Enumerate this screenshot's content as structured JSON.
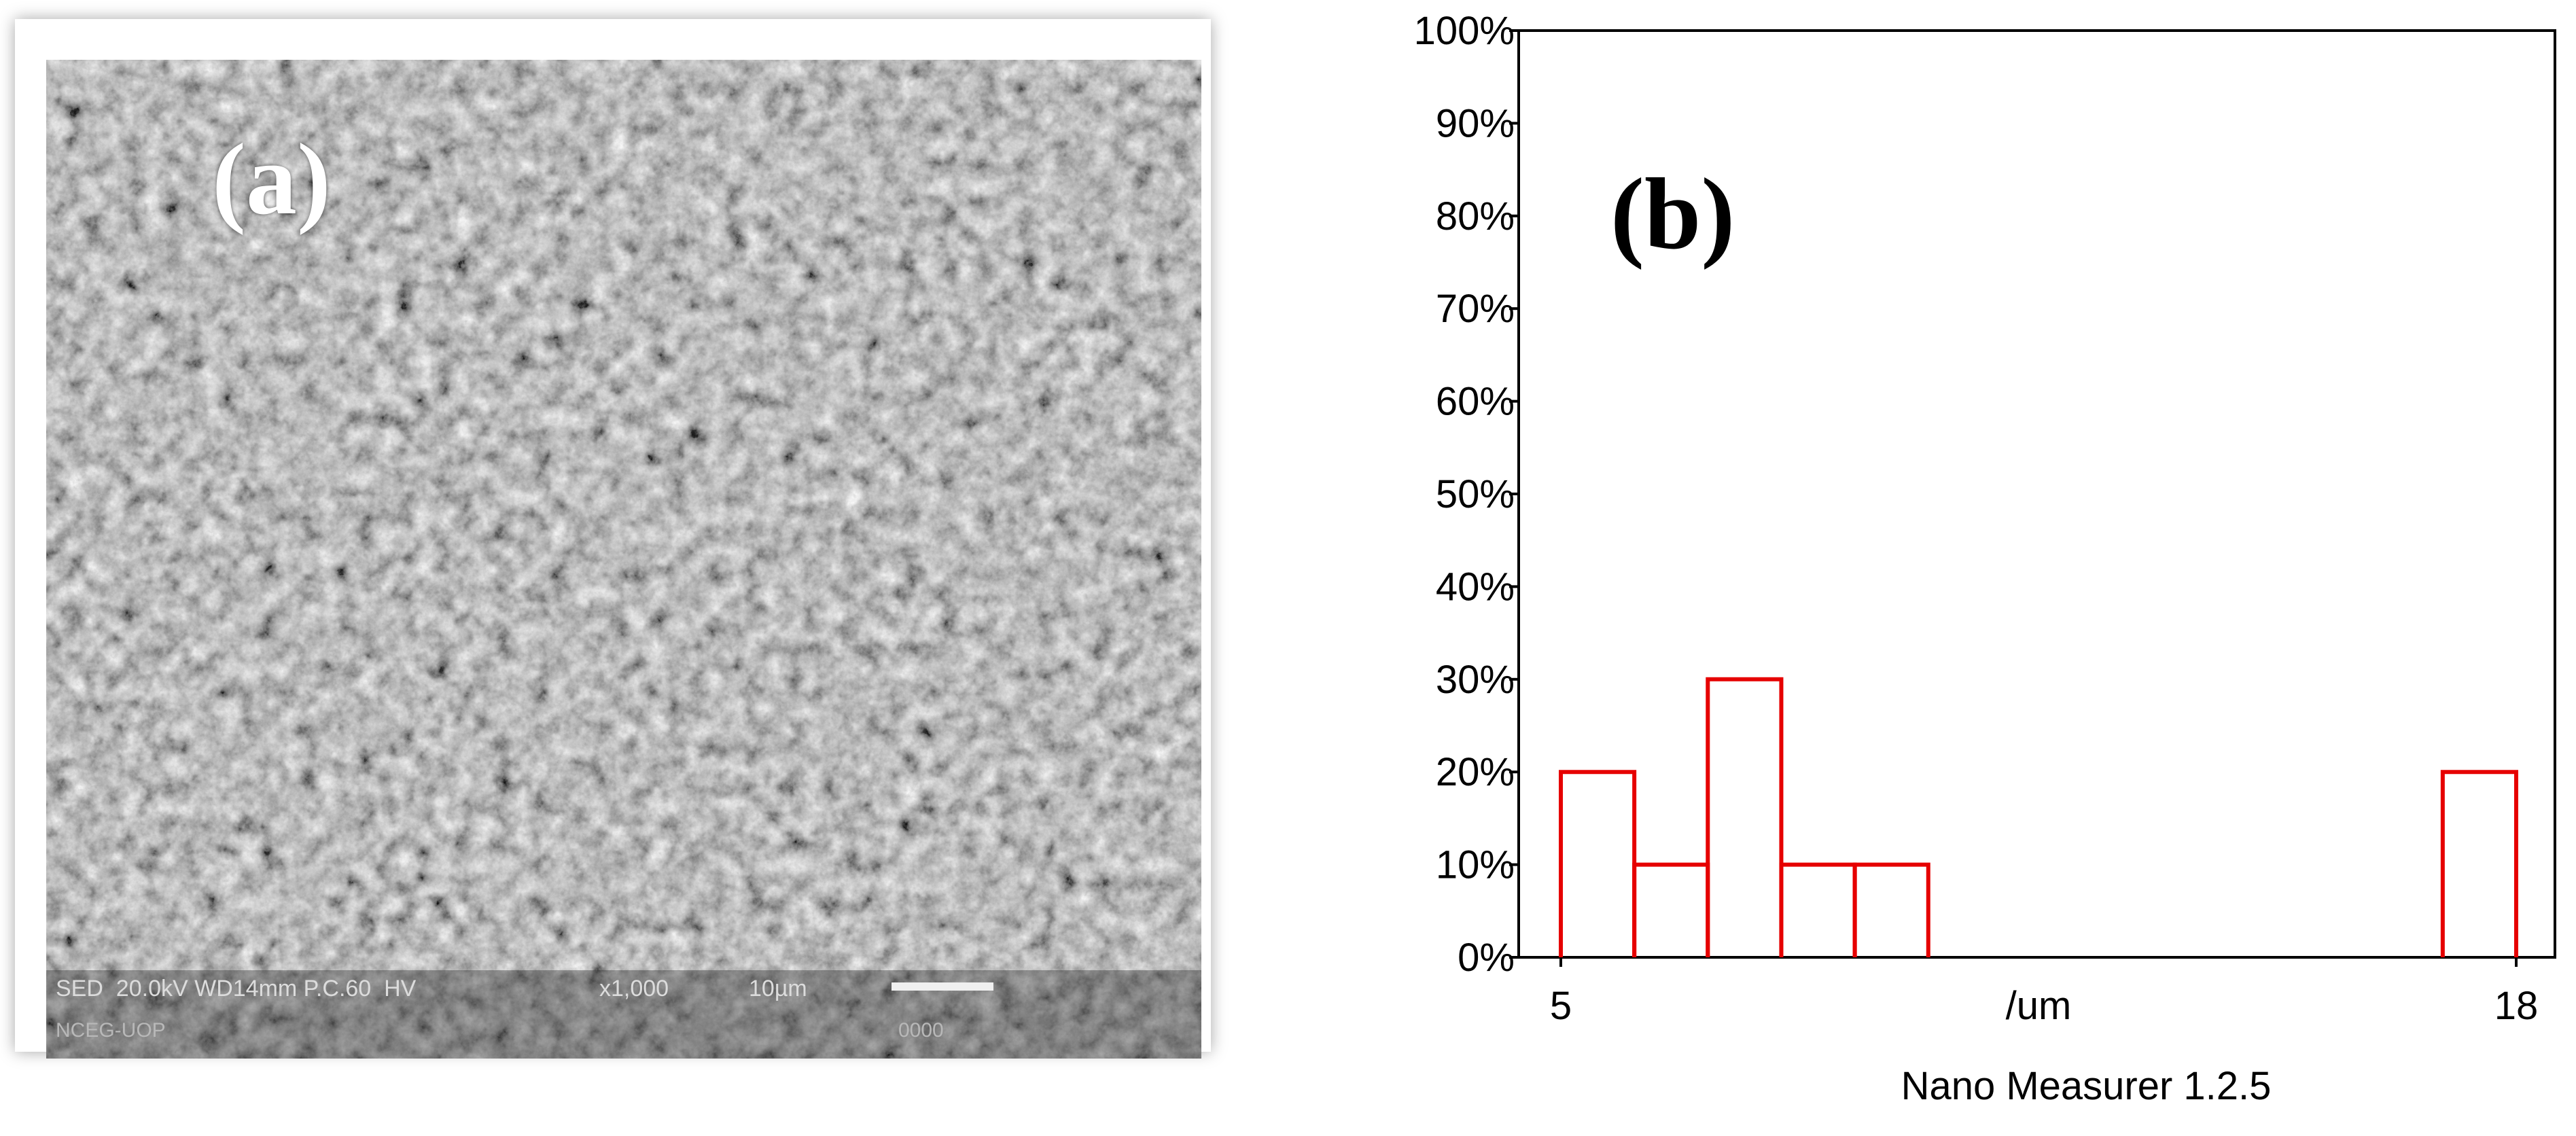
{
  "panel_a": {
    "label": "(a)",
    "info_line": "SED  20.0kV WD14mm P.C.60  HV",
    "magnification": "x1,000",
    "scale_text": "10µm",
    "lab": "NCEG-UOP",
    "image_number": "0000"
  },
  "chart_data": {
    "type": "bar",
    "panel_label": "(b)",
    "y_ticks": [
      "0%",
      "10%",
      "20%",
      "30%",
      "40%",
      "50%",
      "60%",
      "70%",
      "80%",
      "90%",
      "100%"
    ],
    "ylim": [
      0,
      100
    ],
    "x_tick_labels": [
      "5",
      "/um",
      "18"
    ],
    "xlabel": "Nano Measurer 1.2.5",
    "xlim": [
      5,
      18
    ],
    "bins": [
      {
        "x0": 5.0,
        "x1": 6.0,
        "value": 20
      },
      {
        "x0": 6.0,
        "x1": 7.0,
        "value": 10
      },
      {
        "x0": 7.0,
        "x1": 8.0,
        "value": 30
      },
      {
        "x0": 8.0,
        "x1": 9.0,
        "value": 10
      },
      {
        "x0": 9.0,
        "x1": 10.0,
        "value": 10
      },
      {
        "x0": 17.0,
        "x1": 18.0,
        "value": 20
      }
    ],
    "bar_color": "#e60000",
    "grid": false
  }
}
